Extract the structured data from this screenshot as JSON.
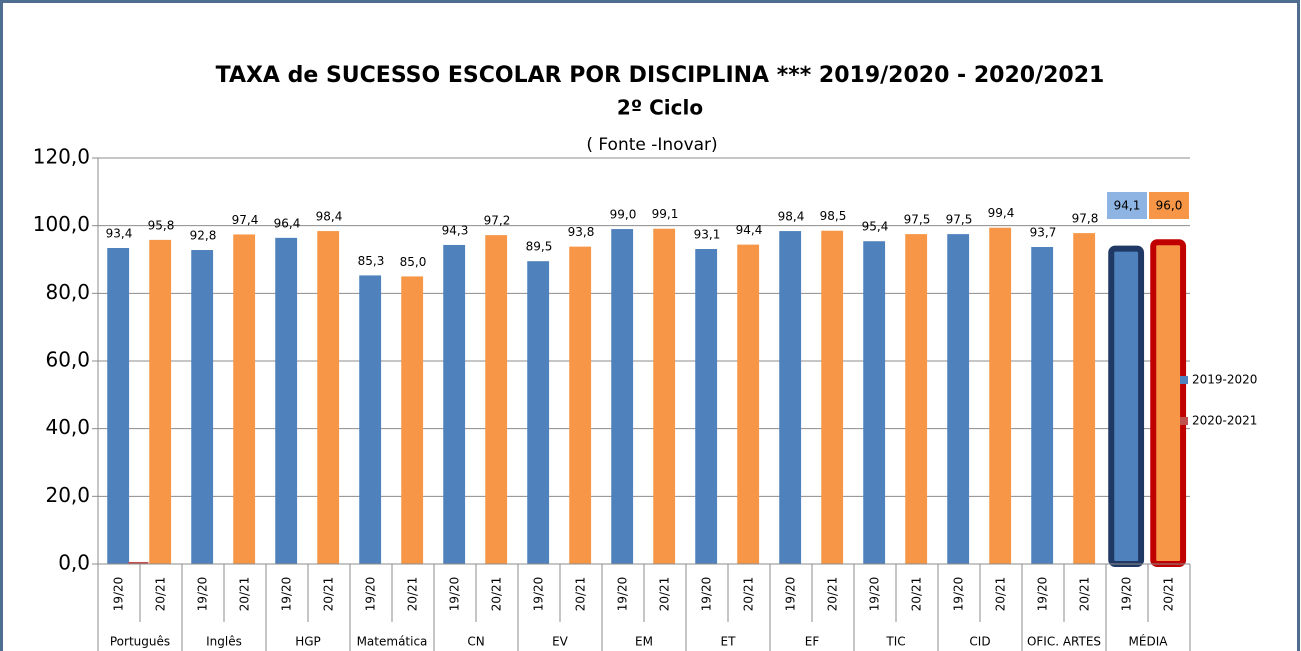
{
  "chart_data": {
    "type": "bar",
    "title": "TAXA de SUCESSO ESCOLAR POR DISCIPLINA ***  2019/2020  - 2020/2021",
    "subtitle": "2º Ciclo",
    "note": "( Fonte -Inovar)",
    "categories": [
      "19/20",
      "20/21",
      "19/20",
      "20/21",
      "19/20",
      "20/21",
      "19/20",
      "20/21",
      "19/20",
      "20/21",
      "19/20",
      "20/21",
      "19/20",
      "20/21",
      "19/20",
      "20/21",
      "19/20",
      "20/21",
      "19/20",
      "20/21",
      "19/20",
      "20/21",
      "19/20",
      "20/21",
      "19/20",
      "20/21"
    ],
    "groups": [
      "Português",
      "Inglês",
      "HGP",
      "Matemática",
      "CN",
      "EV",
      "EM",
      "ET",
      "EF",
      "TIC",
      "CID",
      "OFIC. ARTES",
      "MÉDIA"
    ],
    "series": [
      {
        "name": "2019-2020",
        "color": "#4f81bd",
        "values": [
          93.4,
          95.8,
          92.8,
          97.4,
          96.4,
          98.4,
          85.3,
          85.0,
          94.3,
          97.2,
          89.5,
          93.8,
          99.0,
          99.1,
          93.1,
          94.4,
          98.4,
          98.5,
          95.4,
          97.5,
          97.5,
          99.4,
          93.7,
          97.8,
          94.1,
          96.0
        ],
        "value_labels": [
          "93,4",
          "95,8",
          "92,8",
          "97,4",
          "96,4",
          "98,4",
          "85,3",
          "85,0",
          "94,3",
          "97,2",
          "89,5",
          "93,8",
          "99,0",
          "99,1",
          "93,1",
          "94,4",
          "98,4",
          "98,5",
          "95,4",
          "97,5",
          "97,5",
          "99,4",
          "93,7",
          "97,8",
          "94,1",
          "96,0"
        ],
        "point_colors": [
          "#4f81bd",
          "#f79646",
          "#4f81bd",
          "#f79646",
          "#4f81bd",
          "#f79646",
          "#4f81bd",
          "#f79646",
          "#4f81bd",
          "#f79646",
          "#4f81bd",
          "#f79646",
          "#4f81bd",
          "#f79646",
          "#4f81bd",
          "#f79646",
          "#4f81bd",
          "#f79646",
          "#4f81bd",
          "#f79646",
          "#4f81bd",
          "#f79646",
          "#4f81bd",
          "#f79646",
          "#4f81bd",
          "#f79646"
        ],
        "point_outlines": [
          null,
          null,
          null,
          null,
          null,
          null,
          null,
          null,
          null,
          null,
          null,
          null,
          null,
          null,
          null,
          null,
          null,
          null,
          null,
          null,
          null,
          null,
          null,
          null,
          "#1f3864",
          "#c00000"
        ],
        "label_boxes": [
          null,
          null,
          null,
          null,
          null,
          null,
          null,
          null,
          null,
          null,
          null,
          null,
          null,
          null,
          null,
          null,
          null,
          null,
          null,
          null,
          null,
          null,
          null,
          null,
          "#8db4e2",
          "#f79646"
        ]
      },
      {
        "name": "2020-2021",
        "color": "#c0504d",
        "values": [
          0.6,
          null,
          null,
          null,
          null,
          null,
          null,
          null,
          null,
          null,
          null,
          null,
          null,
          null,
          null,
          null,
          null,
          null,
          null,
          null,
          null,
          null,
          null,
          null,
          null,
          null
        ]
      }
    ],
    "ylim": [
      0,
      120
    ],
    "yticks": [
      {
        "value": 0,
        "label": "0,0"
      },
      {
        "value": 20,
        "label": "20,0"
      },
      {
        "value": 40,
        "label": "40,0"
      },
      {
        "value": 60,
        "label": "60,0"
      },
      {
        "value": 80,
        "label": "80,0"
      },
      {
        "value": 100,
        "label": "100,0"
      },
      {
        "value": 120,
        "label": "120,0"
      }
    ],
    "grid": true,
    "legend": "right"
  }
}
